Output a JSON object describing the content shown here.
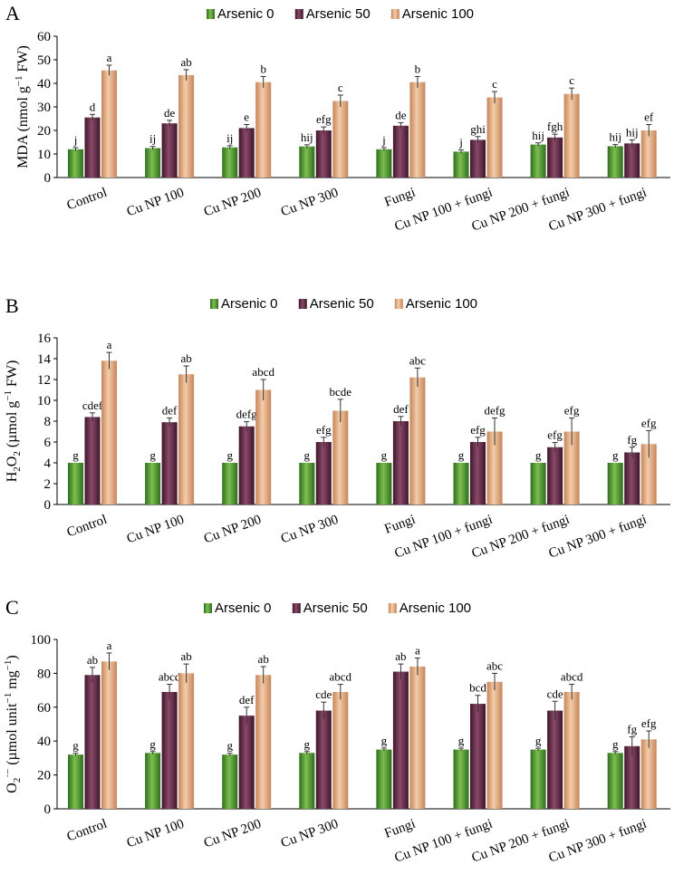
{
  "colors": {
    "series0": "#3f8a2a",
    "series0_light": "#7cbf4e",
    "series1": "#5c2340",
    "series1_light": "#8a4a6a",
    "series2": "#e0a577",
    "series2_light": "#f4cda8"
  },
  "chart_data": [
    {
      "panel": "A",
      "type": "bar",
      "ylabel_main": "MDA (nmol g",
      "ylabel_sup": "−1",
      "ylabel_end": " FW)",
      "ylim": [
        0,
        60
      ],
      "yticks": [
        0,
        10,
        20,
        30,
        40,
        50,
        60
      ],
      "categories": [
        "Control",
        "Cu NP 100",
        "Cu NP 200",
        "Cu NP 300",
        "Fungi",
        "Cu NP 100 + fungi",
        "Cu NP 200 + fungi",
        "Cu NP 300 + fungi"
      ],
      "series": [
        {
          "name": "Arsenic 0",
          "values": [
            12,
            12.5,
            12.8,
            13.2,
            12,
            11,
            14,
            13.3
          ],
          "errors": [
            0.7,
            0.7,
            0.7,
            0.7,
            0.7,
            0.7,
            0.7,
            0.7
          ],
          "labels": [
            "j",
            "ij",
            "ij",
            "hij",
            "j",
            "j",
            "hij",
            "hij"
          ]
        },
        {
          "name": "Arsenic 50",
          "values": [
            25.5,
            23,
            21,
            20,
            22,
            16,
            17,
            14.5
          ],
          "errors": [
            1.3,
            1.3,
            1.5,
            1.5,
            1.3,
            1.4,
            1.4,
            1.5
          ],
          "labels": [
            "d",
            "de",
            "e",
            "efg",
            "de",
            "ghi",
            "fgh",
            "hij"
          ]
        },
        {
          "name": "Arsenic 100",
          "values": [
            45.5,
            43.5,
            40.5,
            32.5,
            40.5,
            34,
            35.5,
            20
          ],
          "errors": [
            2.2,
            2.3,
            2.4,
            2.5,
            2.4,
            2.5,
            2.5,
            2.5
          ],
          "labels": [
            "a",
            "ab",
            "b",
            "c",
            "b",
            "c",
            "c",
            "ef"
          ]
        }
      ]
    },
    {
      "panel": "B",
      "type": "bar",
      "ylabel_main": "H",
      "ylabel_sub1": "2",
      "ylabel_mid": "O",
      "ylabel_sub2": "2",
      "ylabel_pre": " (µmol g",
      "ylabel_sup": "−1",
      "ylabel_end": " FW)",
      "ylim": [
        0,
        16
      ],
      "yticks": [
        0,
        2,
        4,
        6,
        8,
        10,
        12,
        14,
        16
      ],
      "categories": [
        "Control",
        "Cu NP 100",
        "Cu NP 200",
        "Cu NP 300",
        "Fungi",
        "Cu NP 100 + fungi",
        "Cu NP 200 + fungi",
        "Cu NP 300 + fungi"
      ],
      "series": [
        {
          "name": "Arsenic 0",
          "values": [
            4,
            4,
            4,
            4,
            4,
            4,
            4,
            4
          ],
          "errors": [
            0,
            0,
            0,
            0,
            0,
            0,
            0,
            0
          ],
          "labels": [
            "g",
            "g",
            "g",
            "g",
            "g",
            "g",
            "g",
            "g"
          ]
        },
        {
          "name": "Arsenic 50",
          "values": [
            8.4,
            7.9,
            7.5,
            6,
            8,
            6,
            5.5,
            5
          ],
          "errors": [
            0.4,
            0.4,
            0.45,
            0.45,
            0.45,
            0.45,
            0.45,
            0.5
          ],
          "labels": [
            "cdef",
            "def",
            "defg",
            "efg",
            "def",
            "efg",
            "efg",
            "fg"
          ]
        },
        {
          "name": "Arsenic 100",
          "values": [
            13.8,
            12.5,
            11,
            9,
            12.2,
            7,
            7,
            5.8
          ],
          "errors": [
            0.8,
            0.8,
            1.0,
            1.1,
            0.9,
            1.3,
            1.3,
            1.3
          ],
          "labels": [
            "a",
            "ab",
            "abcd",
            "bcde",
            "abc",
            "defg",
            "efg",
            "efg"
          ]
        }
      ]
    },
    {
      "panel": "C",
      "type": "bar",
      "ylabel_main": "O",
      "ylabel_sub1": "2",
      "ylabel_sup1": "·−",
      "ylabel_pre": " (µmol unit",
      "ylabel_sup": "−1",
      "ylabel_mid": " mg",
      "ylabel_sup2": "−1",
      "ylabel_end": ")",
      "ylim": [
        0,
        100
      ],
      "yticks": [
        0,
        20,
        40,
        60,
        80,
        100
      ],
      "categories": [
        "Control",
        "Cu NP 100",
        "Cu NP 200",
        "Cu NP 300",
        "Fungi",
        "Cu NP 100 + fungi",
        "Cu NP 200 + fungi",
        "Cu NP 300 + fungi"
      ],
      "series": [
        {
          "name": "Arsenic 0",
          "values": [
            32,
            33,
            32,
            33,
            35,
            35,
            35,
            33
          ],
          "errors": [
            0.8,
            0.8,
            0.8,
            0.8,
            0.8,
            0.8,
            0.8,
            0.8
          ],
          "labels": [
            "g",
            "g",
            "g",
            "g",
            "g",
            "g",
            "g",
            "g"
          ]
        },
        {
          "name": "Arsenic 50",
          "values": [
            79,
            69,
            55,
            58,
            81,
            62,
            58,
            37
          ],
          "errors": [
            4.5,
            4.5,
            5,
            5,
            4.5,
            5,
            5.5,
            5.5
          ],
          "labels": [
            "ab",
            "abcd",
            "def",
            "cde",
            "ab",
            "bcd",
            "cde",
            "fg"
          ]
        },
        {
          "name": "Arsenic 100",
          "values": [
            87,
            80,
            79,
            69,
            84,
            75,
            69,
            41
          ],
          "errors": [
            5,
            5.5,
            5,
            4.5,
            5,
            5,
            4.5,
            5
          ],
          "labels": [
            "a",
            "ab",
            "ab",
            "abcd",
            "a",
            "abc",
            "abcd",
            "efg"
          ]
        }
      ]
    }
  ]
}
